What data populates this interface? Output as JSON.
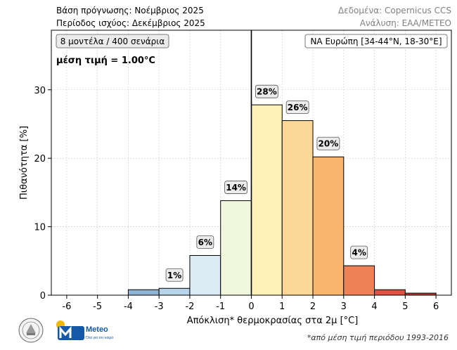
{
  "header": {
    "base_label": "Βάση πρόγνωσης: Νοέμβριος 2025",
    "period_label": "Περίοδος ισχύος: Δεκέμβριος 2025",
    "data_source": "Δεδομένα: Copernicus CCS",
    "analysis": "Ανάλυση: ΕΑΑ/METEO"
  },
  "annotations": {
    "models": "8 μοντέλα / 400 σενάρια",
    "mean_value": "μέση τιμή = 1.00°C",
    "region": "ΝΑ Ευρώπη [34-44°N, 18-30°E]"
  },
  "logos": {
    "meteo_name": "Meteo",
    "meteo_tagline": "Όλα για τον καιρό"
  },
  "footnote": "*από μέση τιμή περιόδου 1993-2016",
  "colors": {
    "mean_line": "#000000",
    "grid": "#c8c8c8"
  },
  "chart_data": {
    "type": "bar",
    "xlabel": "Απόκλιση* θερμοκρασίας στα 2μ [°C]",
    "ylabel": "Πιθανότητα [%]",
    "xlim": [
      -6.5,
      6.5
    ],
    "ylim": [
      0,
      38.7
    ],
    "xticks": [
      -6,
      -5,
      -4,
      -3,
      -2,
      -1,
      0,
      1,
      2,
      3,
      4,
      5,
      6
    ],
    "yticks": [
      0,
      10,
      20,
      30
    ],
    "grid": true,
    "mean_line_x": 0,
    "bins": [
      {
        "x0": -4,
        "x1": -3,
        "value": 0.8,
        "color": "#8fb4d3"
      },
      {
        "x0": -3,
        "x1": -2,
        "value": 1.0,
        "color": "#b7d4e8",
        "label": "1%"
      },
      {
        "x0": -2,
        "x1": -1,
        "value": 5.8,
        "color": "#dcecf4",
        "label": "6%"
      },
      {
        "x0": -1,
        "x1": 0,
        "value": 13.8,
        "color": "#f1f7dd",
        "label": "14%"
      },
      {
        "x0": 0,
        "x1": 1,
        "value": 27.8,
        "color": "#fdf2b6",
        "label": "28%"
      },
      {
        "x0": 1,
        "x1": 2,
        "value": 25.5,
        "color": "#fcd898",
        "label": "26%"
      },
      {
        "x0": 2,
        "x1": 3,
        "value": 20.2,
        "color": "#fab56c",
        "label": "20%"
      },
      {
        "x0": 3,
        "x1": 4,
        "value": 4.3,
        "color": "#ef8157",
        "label": "4%"
      },
      {
        "x0": 4,
        "x1": 5,
        "value": 0.8,
        "color": "#de5242"
      },
      {
        "x0": 5,
        "x1": 6,
        "value": 0.3,
        "color": "#c03a34"
      }
    ]
  }
}
